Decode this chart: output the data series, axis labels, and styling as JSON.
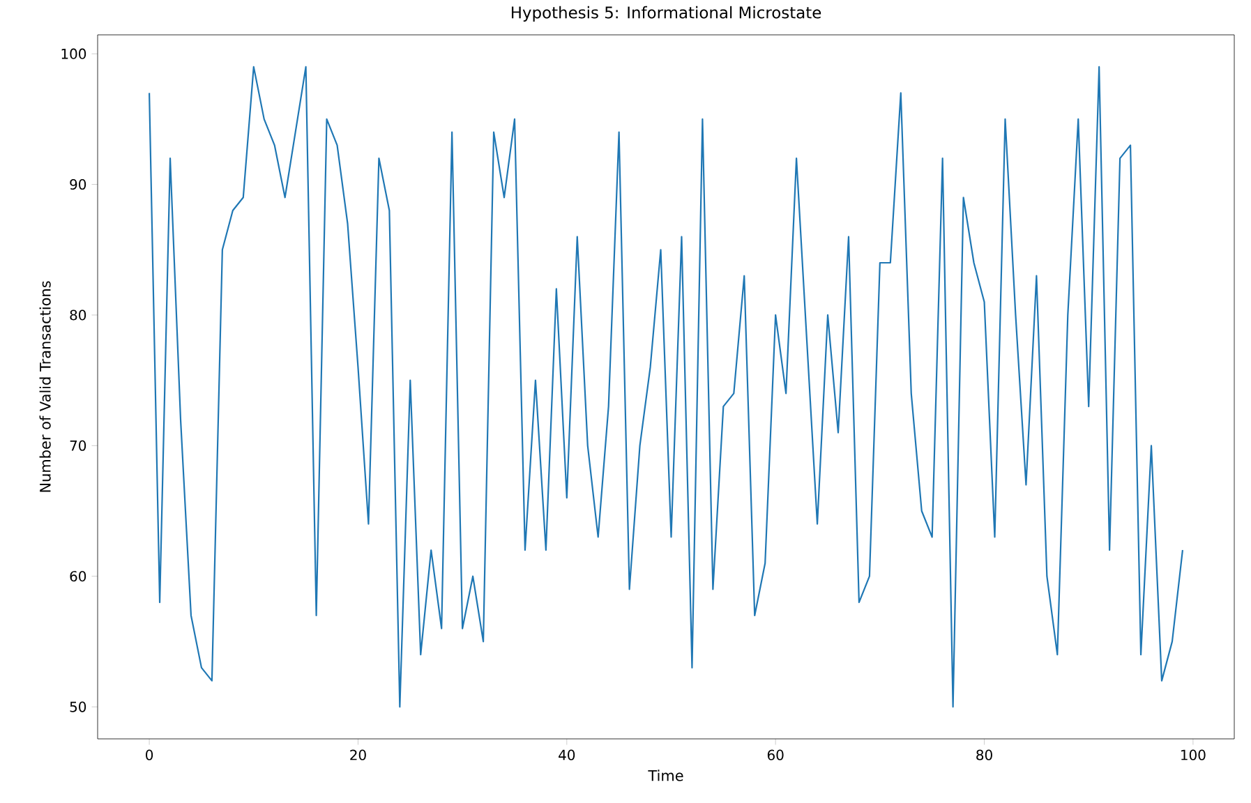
{
  "chart_data": {
    "type": "line",
    "title": "Hypothesis 5: Informational Microstate",
    "xlabel": "Time",
    "ylabel": "Number of Valid Transactions",
    "x": [
      0,
      1,
      2,
      3,
      4,
      5,
      6,
      7,
      8,
      9,
      10,
      11,
      12,
      13,
      14,
      15,
      16,
      17,
      18,
      19,
      20,
      21,
      22,
      23,
      24,
      25,
      26,
      27,
      28,
      29,
      30,
      31,
      32,
      33,
      34,
      35,
      36,
      37,
      38,
      39,
      40,
      41,
      42,
      43,
      44,
      45,
      46,
      47,
      48,
      49,
      50,
      51,
      52,
      53,
      54,
      55,
      56,
      57,
      58,
      59,
      60,
      61,
      62,
      63,
      64,
      65,
      66,
      67,
      68,
      69,
      70,
      71,
      72,
      73,
      74,
      75,
      76,
      77,
      78,
      79,
      80,
      81,
      82,
      83,
      84,
      85,
      86,
      87,
      88,
      89,
      90,
      91,
      92,
      93,
      94,
      95,
      96,
      97,
      98,
      99
    ],
    "series": [
      {
        "color": "#1f77b4",
        "values": [
          97,
          58,
          92,
          72,
          57,
          53,
          52,
          85,
          88,
          89,
          99,
          95,
          93,
          89,
          94,
          99,
          57,
          95,
          93,
          87,
          76,
          64,
          92,
          88,
          50,
          75,
          54,
          62,
          56,
          94,
          56,
          60,
          55,
          94,
          89,
          95,
          62,
          75,
          62,
          82,
          66,
          86,
          70,
          63,
          73,
          94,
          59,
          70,
          76,
          85,
          63,
          86,
          53,
          95,
          59,
          73,
          74,
          83,
          57,
          61,
          80,
          74,
          92,
          78,
          64,
          80,
          71,
          86,
          58,
          60,
          84,
          84,
          97,
          74,
          65,
          63,
          92,
          50,
          89,
          84,
          81,
          63,
          95,
          80,
          67,
          83,
          60,
          54,
          80,
          95,
          73,
          99,
          62,
          92,
          93,
          54,
          70,
          52,
          55,
          62
        ]
      }
    ],
    "xlim": [
      -4.95,
      103.95
    ],
    "ylim": [
      47.55,
      101.45
    ],
    "xticks": [
      0,
      20,
      40,
      60,
      80,
      100
    ],
    "yticks": [
      50,
      60,
      70,
      80,
      90,
      100
    ],
    "line_style": "solid",
    "marker": "none"
  }
}
